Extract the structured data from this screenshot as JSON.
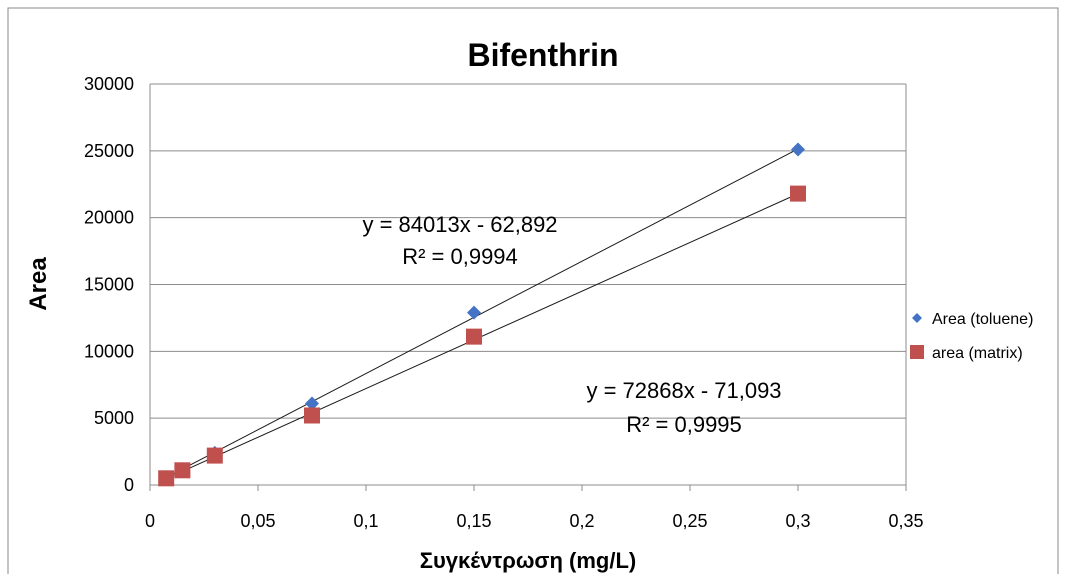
{
  "chart_data": {
    "type": "scatter",
    "title": "Bifenthrin",
    "xlabel": "Συγκέντρωση (mg/L)",
    "ylabel": "Area",
    "xlim": [
      0,
      0.35
    ],
    "ylim": [
      0,
      30000
    ],
    "x_ticks": [
      "0",
      "0,05",
      "0,1",
      "0,15",
      "0,2",
      "0,25",
      "0,3",
      "0,35"
    ],
    "y_ticks": [
      "0",
      "5000",
      "10000",
      "15000",
      "20000",
      "25000",
      "30000"
    ],
    "grid": "horizontal",
    "legend_position": "right",
    "series": [
      {
        "name": "Area (toluene)",
        "marker": "diamond",
        "color": "#4472C4",
        "x": [
          0.0075,
          0.015,
          0.03,
          0.075,
          0.15,
          0.3
        ],
        "y": [
          600,
          1200,
          2400,
          6100,
          12900,
          25100
        ],
        "trendline": {
          "slope": 84013,
          "intercept": -62.892,
          "equation": "y = 84013x - 62,892",
          "r2": "R² = 0,9994"
        }
      },
      {
        "name": "area (matrix)",
        "marker": "square",
        "color": "#C0504D",
        "x": [
          0.0075,
          0.015,
          0.03,
          0.075,
          0.15,
          0.3
        ],
        "y": [
          500,
          1100,
          2200,
          5200,
          11100,
          21800
        ],
        "trendline": {
          "slope": 72868,
          "intercept": -71.093,
          "equation": "y = 72868x - 71,093",
          "r2": "R² = 0,9995"
        }
      }
    ]
  }
}
